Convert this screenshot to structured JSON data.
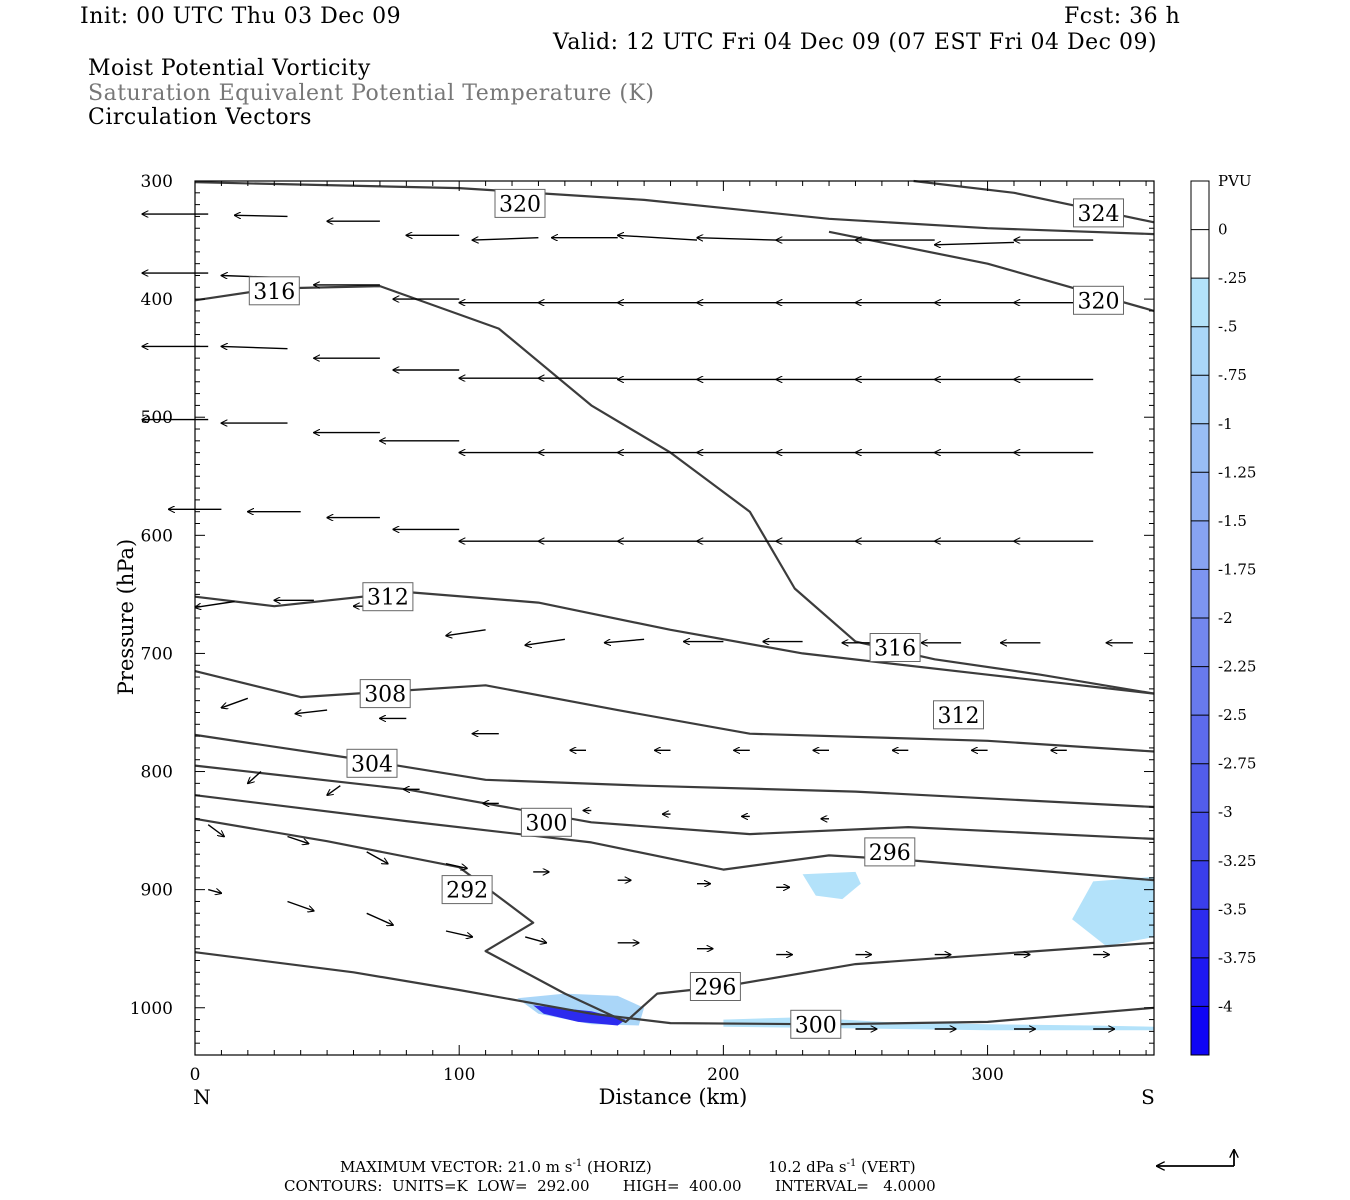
{
  "header": {
    "init": "Init: 00 UTC Thu 03 Dec 09",
    "fcst": "Fcst:   36 h",
    "valid": "Valid: 12 UTC Fri 04 Dec 09 (07 EST Fri 04 Dec 09)",
    "fields": [
      "Moist Potential Vorticity",
      "Saturation Equivalent Potential Temperature (K)",
      "Circulation Vectors"
    ]
  },
  "footer": {
    "max_vector": "MAXIMUM VECTOR:  21.0 m s",
    "max_vector_unit_sup": "-1",
    "max_vector_horiz": " (HORIZ)",
    "max_vector_vert": "10.2 dPa s",
    "max_vector_vert_sup": "-1",
    "max_vector_vert_tail": " (VERT)",
    "contours": "CONTOURS:  UNITS=K  LOW=  292.00       HIGH=  400.00       INTERVAL=   4.0000"
  },
  "chart_data": {
    "type": "cross-section",
    "xlabel": "Distance (km)",
    "ylabel": "Pressure (hPa)",
    "xlim": [
      0,
      363
    ],
    "ylim": [
      1040,
      300
    ],
    "x_ticks": [
      0,
      100,
      200,
      300
    ],
    "y_ticks": [
      300,
      400,
      500,
      600,
      700,
      800,
      900,
      1000
    ],
    "x_end_labels": {
      "left": "N",
      "right": "S"
    },
    "colorbar": {
      "unit": "PVU",
      "labels": [
        "0",
        "-.25",
        "-.5",
        "-.75",
        "-1",
        "-1.25",
        "-1.5",
        "-1.75",
        "-2",
        "-2.25",
        "-2.5",
        "-2.75",
        "-3",
        "-3.25",
        "-3.5",
        "-3.75",
        "-4"
      ],
      "colors": [
        "#ffffff",
        "#ffffff",
        "#b3e2fa",
        "#aad6f8",
        "#a2ccf7",
        "#99bef5",
        "#90b1f4",
        "#87a3f2",
        "#7d95f0",
        "#7387ee",
        "#687aed",
        "#5d6bec",
        "#525deb",
        "#464eeb",
        "#3a3eeb",
        "#2c2bee",
        "#1e18f2",
        "#1005f5"
      ]
    },
    "contour_labels": [
      {
        "text": "320",
        "x": 123,
        "p": 319
      },
      {
        "text": "324",
        "x": 342,
        "p": 327
      },
      {
        "text": "316",
        "x": 30,
        "p": 393
      },
      {
        "text": "320",
        "x": 342,
        "p": 401
      },
      {
        "text": "312",
        "x": 73,
        "p": 652
      },
      {
        "text": "316",
        "x": 265,
        "p": 695
      },
      {
        "text": "308",
        "x": 72,
        "p": 734
      },
      {
        "text": "312",
        "x": 289,
        "p": 752
      },
      {
        "text": "304",
        "x": 67,
        "p": 793
      },
      {
        "text": "300",
        "x": 133,
        "p": 843
      },
      {
        "text": "296",
        "x": 263,
        "p": 868
      },
      {
        "text": "292",
        "x": 103,
        "p": 900
      },
      {
        "text": "296",
        "x": 197,
        "p": 982
      },
      {
        "text": "300",
        "x": 235,
        "p": 1014
      }
    ],
    "theta_e_contours": [
      {
        "level": 320,
        "points": [
          [
            0,
            301
          ],
          [
            100,
            306
          ],
          [
            170,
            316
          ],
          [
            240,
            332
          ],
          [
            300,
            340
          ],
          [
            363,
            345
          ]
        ]
      },
      {
        "level": 324,
        "points": [
          [
            272,
            300
          ],
          [
            310,
            310
          ],
          [
            363,
            335
          ]
        ]
      },
      {
        "level": 320,
        "points": [
          [
            0,
            401
          ],
          [
            30,
            391
          ],
          [
            70,
            389
          ],
          [
            115,
            425
          ],
          [
            150,
            490
          ],
          [
            180,
            530
          ],
          [
            210,
            580
          ],
          [
            227,
            645
          ],
          [
            250,
            690
          ],
          [
            280,
            705
          ],
          [
            320,
            718
          ],
          [
            363,
            734
          ]
        ]
      },
      {
        "level": 320,
        "points": [
          [
            240,
            343
          ],
          [
            300,
            370
          ],
          [
            363,
            410
          ]
        ]
      },
      {
        "level": 312,
        "points": [
          [
            0,
            652
          ],
          [
            30,
            660
          ],
          [
            80,
            648
          ],
          [
            130,
            657
          ],
          [
            180,
            680
          ],
          [
            230,
            700
          ],
          [
            300,
            718
          ],
          [
            363,
            734
          ]
        ]
      },
      {
        "level": 308,
        "points": [
          [
            0,
            715
          ],
          [
            40,
            737
          ],
          [
            110,
            727
          ],
          [
            160,
            748
          ],
          [
            210,
            768
          ],
          [
            300,
            774
          ],
          [
            363,
            783
          ]
        ]
      },
      {
        "level": 304,
        "points": [
          [
            0,
            769
          ],
          [
            60,
            789
          ],
          [
            110,
            807
          ],
          [
            170,
            812
          ],
          [
            250,
            817
          ],
          [
            363,
            830
          ]
        ]
      },
      {
        "level": 300,
        "points": [
          [
            0,
            795
          ],
          [
            80,
            815
          ],
          [
            150,
            843
          ],
          [
            210,
            853
          ],
          [
            270,
            847
          ],
          [
            363,
            857
          ]
        ]
      },
      {
        "level": 296,
        "points": [
          [
            0,
            820
          ],
          [
            80,
            842
          ],
          [
            150,
            860
          ],
          [
            200,
            883
          ],
          [
            240,
            871
          ],
          [
            270,
            875
          ],
          [
            363,
            892
          ]
        ]
      },
      {
        "level": 292,
        "points": [
          [
            0,
            840
          ],
          [
            50,
            859
          ],
          [
            100,
            881
          ],
          [
            128,
            928
          ],
          [
            110,
            952
          ],
          [
            140,
            988
          ],
          [
            163,
            1012
          ],
          [
            175,
            988
          ],
          [
            200,
            982
          ],
          [
            250,
            963
          ],
          [
            363,
            945
          ]
        ]
      },
      {
        "level": 300,
        "points": [
          [
            0,
            953
          ],
          [
            60,
            970
          ],
          [
            100,
            985
          ],
          [
            150,
            1005
          ],
          [
            180,
            1013
          ],
          [
            240,
            1014
          ],
          [
            300,
            1012
          ],
          [
            363,
            1000
          ]
        ]
      }
    ],
    "pv_regions": [
      {
        "value": -0.5,
        "points": [
          [
            122,
            992
          ],
          [
            140,
            988
          ],
          [
            160,
            990
          ],
          [
            170,
            1000
          ],
          [
            168,
            1015
          ],
          [
            150,
            1014
          ],
          [
            130,
            1005
          ]
        ]
      },
      {
        "value": -3.5,
        "points": [
          [
            128,
            998
          ],
          [
            150,
            1003
          ],
          [
            163,
            1010
          ],
          [
            160,
            1015
          ],
          [
            145,
            1012
          ],
          [
            132,
            1005
          ]
        ]
      },
      {
        "value": -0.25,
        "points": [
          [
            200,
            1010
          ],
          [
            230,
            1008
          ],
          [
            260,
            1012
          ],
          [
            300,
            1014
          ],
          [
            340,
            1015
          ],
          [
            363,
            1016
          ],
          [
            363,
            1019
          ],
          [
            300,
            1019
          ],
          [
            230,
            1017
          ],
          [
            200,
            1016
          ]
        ]
      },
      {
        "value": -0.25,
        "points": [
          [
            230,
            887
          ],
          [
            250,
            885
          ],
          [
            252,
            895
          ],
          [
            245,
            908
          ],
          [
            235,
            905
          ]
        ]
      },
      {
        "value": -0.25,
        "points": [
          [
            340,
            893
          ],
          [
            363,
            889
          ],
          [
            363,
            940
          ],
          [
            345,
            948
          ],
          [
            332,
            925
          ]
        ]
      }
    ],
    "vectors": [
      [
        5,
        328,
        -25,
        0
      ],
      [
        35,
        330,
        -20,
        -1
      ],
      [
        70,
        334,
        -20,
        0
      ],
      [
        100,
        346,
        -20,
        0
      ],
      [
        130,
        348,
        -25,
        2
      ],
      [
        160,
        348,
        -25,
        0
      ],
      [
        190,
        350,
        -30,
        -4
      ],
      [
        220,
        350,
        -30,
        -2
      ],
      [
        250,
        350,
        -30,
        0
      ],
      [
        280,
        350,
        -30,
        0
      ],
      [
        310,
        352,
        -30,
        2
      ],
      [
        340,
        350,
        -30,
        0
      ],
      [
        5,
        378,
        -25,
        0
      ],
      [
        35,
        382,
        -25,
        -2
      ],
      [
        70,
        388,
        -25,
        0
      ],
      [
        100,
        400,
        -25,
        0
      ],
      [
        130,
        403,
        -30,
        0
      ],
      [
        160,
        403,
        -30,
        0
      ],
      [
        190,
        403,
        -30,
        0
      ],
      [
        220,
        403,
        -30,
        0
      ],
      [
        250,
        403,
        -30,
        0
      ],
      [
        280,
        403,
        -30,
        0
      ],
      [
        310,
        403,
        -30,
        0
      ],
      [
        340,
        403,
        -30,
        0
      ],
      [
        5,
        440,
        -25,
        0
      ],
      [
        35,
        442,
        -25,
        -2
      ],
      [
        70,
        450,
        -25,
        0
      ],
      [
        100,
        460,
        -25,
        0
      ],
      [
        130,
        467,
        -30,
        0
      ],
      [
        160,
        467,
        -30,
        0
      ],
      [
        190,
        468,
        -30,
        0
      ],
      [
        220,
        468,
        -30,
        0
      ],
      [
        250,
        468,
        -30,
        0
      ],
      [
        280,
        468,
        -30,
        0
      ],
      [
        310,
        468,
        -30,
        0
      ],
      [
        340,
        468,
        -30,
        0
      ],
      [
        5,
        502,
        -25,
        0
      ],
      [
        35,
        505,
        -25,
        0
      ],
      [
        70,
        513,
        -25,
        0
      ],
      [
        100,
        520,
        -30,
        0
      ],
      [
        130,
        530,
        -30,
        0
      ],
      [
        160,
        530,
        -30,
        0
      ],
      [
        190,
        530,
        -30,
        0
      ],
      [
        220,
        530,
        -30,
        0
      ],
      [
        250,
        530,
        -30,
        0
      ],
      [
        280,
        530,
        -30,
        0
      ],
      [
        310,
        530,
        -30,
        0
      ],
      [
        340,
        530,
        -30,
        0
      ],
      [
        10,
        578,
        -20,
        0
      ],
      [
        40,
        580,
        -20,
        0
      ],
      [
        70,
        585,
        -20,
        0
      ],
      [
        100,
        595,
        -25,
        0
      ],
      [
        130,
        605,
        -30,
        0
      ],
      [
        160,
        605,
        -30,
        0
      ],
      [
        190,
        605,
        -30,
        0
      ],
      [
        220,
        605,
        -30,
        0
      ],
      [
        250,
        605,
        -30,
        0
      ],
      [
        280,
        605,
        -30,
        0
      ],
      [
        310,
        605,
        -30,
        0
      ],
      [
        340,
        605,
        -30,
        0
      ],
      [
        15,
        656,
        -15,
        5
      ],
      [
        45,
        655,
        -15,
        0
      ],
      [
        75,
        660,
        -15,
        0
      ],
      [
        110,
        680,
        -15,
        5
      ],
      [
        140,
        688,
        -15,
        5
      ],
      [
        170,
        688,
        -15,
        3
      ],
      [
        200,
        690,
        -15,
        0
      ],
      [
        230,
        690,
        -15,
        0
      ],
      [
        260,
        691,
        -15,
        0
      ],
      [
        290,
        691,
        -15,
        0
      ],
      [
        320,
        691,
        -15,
        0
      ],
      [
        355,
        691,
        -10,
        0
      ],
      [
        20,
        738,
        -10,
        8
      ],
      [
        50,
        748,
        -12,
        3
      ],
      [
        80,
        755,
        -10,
        0
      ],
      [
        115,
        768,
        -10,
        0
      ],
      [
        148,
        782,
        -6,
        0
      ],
      [
        180,
        782,
        -6,
        0
      ],
      [
        210,
        782,
        -6,
        0
      ],
      [
        240,
        782,
        -6,
        0
      ],
      [
        270,
        782,
        -6,
        0
      ],
      [
        300,
        782,
        -6,
        0
      ],
      [
        330,
        782,
        -6,
        0
      ],
      [
        25,
        800,
        -5,
        10
      ],
      [
        55,
        812,
        -5,
        8
      ],
      [
        85,
        815,
        -6,
        0
      ],
      [
        115,
        827,
        -6,
        0
      ],
      [
        150,
        833,
        -3,
        0
      ],
      [
        180,
        836,
        -3,
        0
      ],
      [
        210,
        838,
        -3,
        0
      ],
      [
        240,
        840,
        -3,
        0
      ],
      [
        5,
        845,
        6,
        10
      ],
      [
        35,
        855,
        8,
        6
      ],
      [
        65,
        868,
        8,
        10
      ],
      [
        95,
        878,
        8,
        4
      ],
      [
        128,
        885,
        6,
        0
      ],
      [
        160,
        892,
        5,
        0
      ],
      [
        190,
        895,
        5,
        0
      ],
      [
        220,
        898,
        5,
        0
      ],
      [
        5,
        900,
        5,
        3
      ],
      [
        35,
        910,
        10,
        8
      ],
      [
        65,
        920,
        10,
        10
      ],
      [
        95,
        935,
        10,
        5
      ],
      [
        125,
        940,
        8,
        5
      ],
      [
        160,
        945,
        8,
        0
      ],
      [
        190,
        950,
        6,
        0
      ],
      [
        220,
        955,
        6,
        0
      ],
      [
        250,
        955,
        6,
        0
      ],
      [
        280,
        955,
        6,
        0
      ],
      [
        310,
        955,
        6,
        0
      ],
      [
        340,
        955,
        6,
        0
      ],
      [
        250,
        1018,
        8,
        0
      ],
      [
        280,
        1018,
        8,
        0
      ],
      [
        310,
        1018,
        8,
        0
      ],
      [
        340,
        1018,
        8,
        0
      ]
    ],
    "legend_arrow": {
      "label": ""
    }
  }
}
